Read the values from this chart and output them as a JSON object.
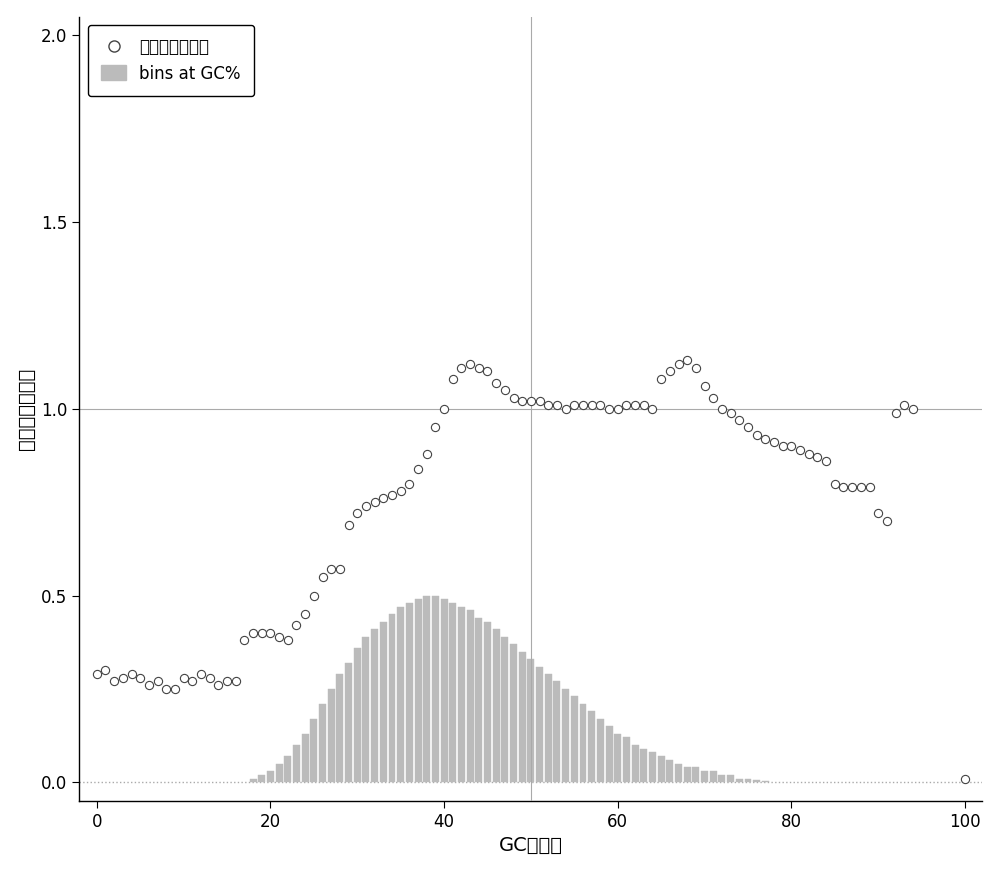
{
  "title": "",
  "xlabel": "GC百分比",
  "ylabel": "标准化后的深度",
  "xlim": [
    -2,
    102
  ],
  "ylim": [
    -0.05,
    2.05
  ],
  "yticks": [
    0.0,
    0.5,
    1.0,
    1.5,
    2.0
  ],
  "xticks": [
    0,
    20,
    40,
    60,
    80,
    100
  ],
  "hline_y": 1.0,
  "hline_dotted_y": 0.0,
  "vline_x": 50,
  "background_color": "#ffffff",
  "scatter_color": "white",
  "scatter_edge_color": "#444444",
  "bar_color": "#bbbbbb",
  "bar_edge_color": "#bbbbbb",
  "legend_scatter_label": "标准化后的深度",
  "legend_bar_label": "bins at GC%",
  "scatter_x": [
    0,
    1,
    2,
    3,
    4,
    5,
    6,
    7,
    8,
    9,
    10,
    11,
    12,
    13,
    14,
    15,
    16,
    17,
    18,
    19,
    20,
    21,
    22,
    23,
    24,
    25,
    26,
    27,
    28,
    29,
    30,
    31,
    32,
    33,
    34,
    35,
    36,
    37,
    38,
    39,
    40,
    41,
    42,
    43,
    44,
    45,
    46,
    47,
    48,
    49,
    50,
    51,
    52,
    53,
    54,
    55,
    56,
    57,
    58,
    59,
    60,
    61,
    62,
    63,
    64,
    65,
    66,
    67,
    68,
    69,
    70,
    71,
    72,
    73,
    74,
    75,
    76,
    77,
    78,
    79,
    80,
    81,
    82,
    83,
    84,
    85,
    86,
    87,
    88,
    89,
    90,
    91,
    92,
    93,
    94,
    100
  ],
  "scatter_y": [
    0.29,
    0.3,
    0.27,
    0.28,
    0.29,
    0.28,
    0.26,
    0.27,
    0.25,
    0.25,
    0.28,
    0.27,
    0.29,
    0.28,
    0.26,
    0.27,
    0.27,
    0.38,
    0.4,
    0.4,
    0.4,
    0.39,
    0.38,
    0.42,
    0.45,
    0.5,
    0.55,
    0.57,
    0.57,
    0.69,
    0.72,
    0.74,
    0.75,
    0.76,
    0.77,
    0.78,
    0.8,
    0.84,
    0.88,
    0.95,
    1.0,
    1.08,
    1.11,
    1.12,
    1.11,
    1.1,
    1.07,
    1.05,
    1.03,
    1.02,
    1.02,
    1.02,
    1.01,
    1.01,
    1.0,
    1.01,
    1.01,
    1.01,
    1.01,
    1.0,
    1.0,
    1.01,
    1.01,
    1.01,
    1.0,
    1.08,
    1.1,
    1.12,
    1.13,
    1.11,
    1.06,
    1.03,
    1.0,
    0.99,
    0.97,
    0.95,
    0.93,
    0.92,
    0.91,
    0.9,
    0.9,
    0.89,
    0.88,
    0.87,
    0.86,
    0.8,
    0.79,
    0.79,
    0.79,
    0.79,
    0.72,
    0.7,
    0.99,
    1.01,
    1.0,
    0.01
  ],
  "bar_x": [
    18,
    19,
    20,
    21,
    22,
    23,
    24,
    25,
    26,
    27,
    28,
    29,
    30,
    31,
    32,
    33,
    34,
    35,
    36,
    37,
    38,
    39,
    40,
    41,
    42,
    43,
    44,
    45,
    46,
    47,
    48,
    49,
    50,
    51,
    52,
    53,
    54,
    55,
    56,
    57,
    58,
    59,
    60,
    61,
    62,
    63,
    64,
    65,
    66,
    67,
    68,
    69,
    70,
    71,
    72,
    73,
    74,
    75,
    76,
    77
  ],
  "bar_height": [
    0.01,
    0.02,
    0.03,
    0.05,
    0.07,
    0.1,
    0.13,
    0.17,
    0.21,
    0.25,
    0.29,
    0.32,
    0.36,
    0.39,
    0.41,
    0.43,
    0.45,
    0.47,
    0.48,
    0.49,
    0.5,
    0.5,
    0.49,
    0.48,
    0.47,
    0.46,
    0.44,
    0.43,
    0.41,
    0.39,
    0.37,
    0.35,
    0.33,
    0.31,
    0.29,
    0.27,
    0.25,
    0.23,
    0.21,
    0.19,
    0.17,
    0.15,
    0.13,
    0.12,
    0.1,
    0.09,
    0.08,
    0.07,
    0.06,
    0.05,
    0.04,
    0.04,
    0.03,
    0.03,
    0.02,
    0.02,
    0.01,
    0.01,
    0.005,
    0.003
  ],
  "figsize": [
    10.0,
    8.72
  ],
  "dpi": 100
}
